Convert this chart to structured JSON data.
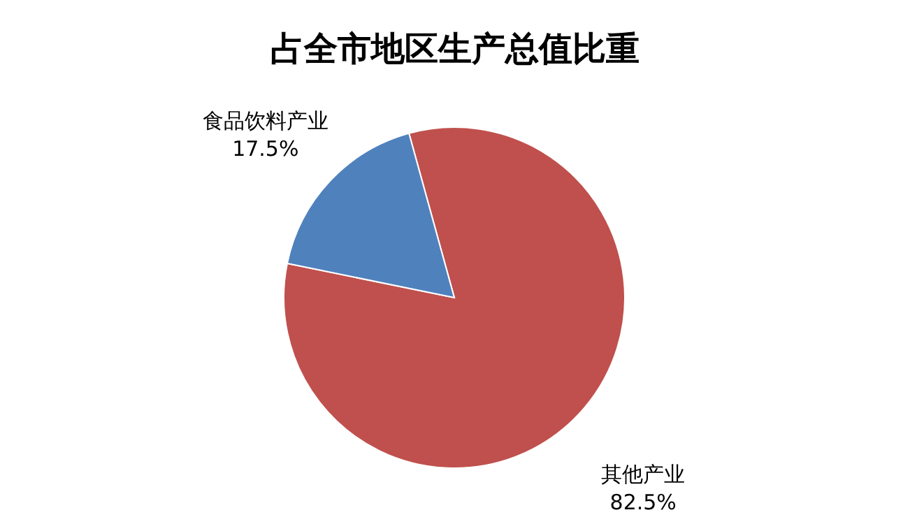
{
  "chart_data": {
    "type": "pie",
    "title": "占全市地区生产总值比重",
    "categories": [
      "其他产业",
      "食品饮料产业"
    ],
    "values": [
      82.5,
      17.5
    ],
    "colors": [
      "#c0504d",
      "#4f81bd"
    ],
    "value_labels": [
      "82.5%",
      "17.5%"
    ],
    "legend": false
  }
}
